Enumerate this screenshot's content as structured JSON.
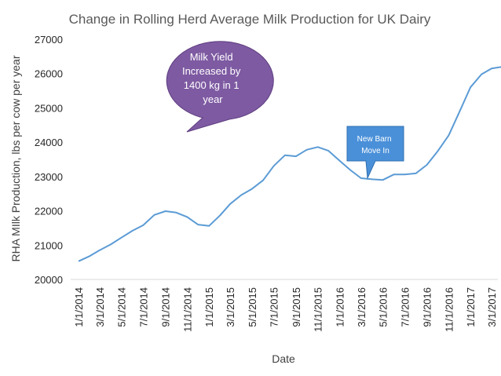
{
  "chart_data": {
    "type": "line",
    "title": "Change in Rolling Herd Average Milk Production for UK Dairy",
    "xlabel": "Date",
    "ylabel": "RHA MIlk Production, lbs per cow per year",
    "ylim": [
      20000,
      27000
    ],
    "y_ticks": [
      20000,
      21000,
      22000,
      23000,
      24000,
      25000,
      26000,
      27000
    ],
    "y_tick_labels": [
      "20000",
      "21000",
      "22000",
      "23000",
      "24000",
      "25000",
      "26000",
      "27000"
    ],
    "x_tick_labels": [
      "1/1/2014",
      "3/1/2014",
      "5/1/2014",
      "7/1/2014",
      "9/1/2014",
      "11/1/2014",
      "1/1/2015",
      "3/1/2015",
      "5/1/2015",
      "7/1/2015",
      "9/1/2015",
      "11/1/2015",
      "1/1/2016",
      "3/1/2016",
      "5/1/2016",
      "7/1/2016",
      "9/1/2016",
      "11/1/2016",
      "1/1/2017",
      "3/1/2017"
    ],
    "grid": false,
    "line_color": "#5b9bd5",
    "x": [
      "1/1/2014",
      "2/1/2014",
      "3/1/2014",
      "4/1/2014",
      "5/1/2014",
      "6/1/2014",
      "7/1/2014",
      "8/1/2014",
      "9/1/2014",
      "10/1/2014",
      "11/1/2014",
      "12/1/2014",
      "1/1/2015",
      "2/1/2015",
      "3/1/2015",
      "4/1/2015",
      "5/1/2015",
      "6/1/2015",
      "7/1/2015",
      "8/1/2015",
      "9/1/2015",
      "10/1/2015",
      "11/1/2015",
      "12/1/2015",
      "1/1/2016",
      "2/1/2016",
      "3/1/2016",
      "4/1/2016",
      "5/1/2016",
      "6/1/2016",
      "7/1/2016",
      "8/1/2016",
      "9/1/2016",
      "10/1/2016",
      "11/1/2016",
      "12/1/2016",
      "1/1/2017",
      "2/1/2017",
      "3/1/2017",
      "4/1/2017"
    ],
    "series": [
      {
        "values": [
          20530,
          20680,
          20850,
          21020,
          21220,
          21420,
          21580,
          21880,
          21990,
          21950,
          21820,
          21600,
          21560,
          21870,
          22200,
          22460,
          22640,
          22890,
          23310,
          23620,
          23590,
          23780,
          23860,
          23750,
          23460,
          23180,
          22950,
          22920,
          22900,
          23060,
          23060,
          23090,
          23340,
          23730,
          24200,
          24880,
          25600,
          25980,
          26150,
          26200
        ]
      }
    ],
    "annotations": [
      {
        "text_lines": [
          "Milk Yield",
          "Increased by",
          "1400 kg in 1",
          "year"
        ],
        "fill": "#7e5aa2",
        "shape": "speech-bubble"
      },
      {
        "text_lines": [
          "New Barn",
          "Move In"
        ],
        "fill": "#4a90d9",
        "shape": "rectangular-callout"
      }
    ]
  }
}
